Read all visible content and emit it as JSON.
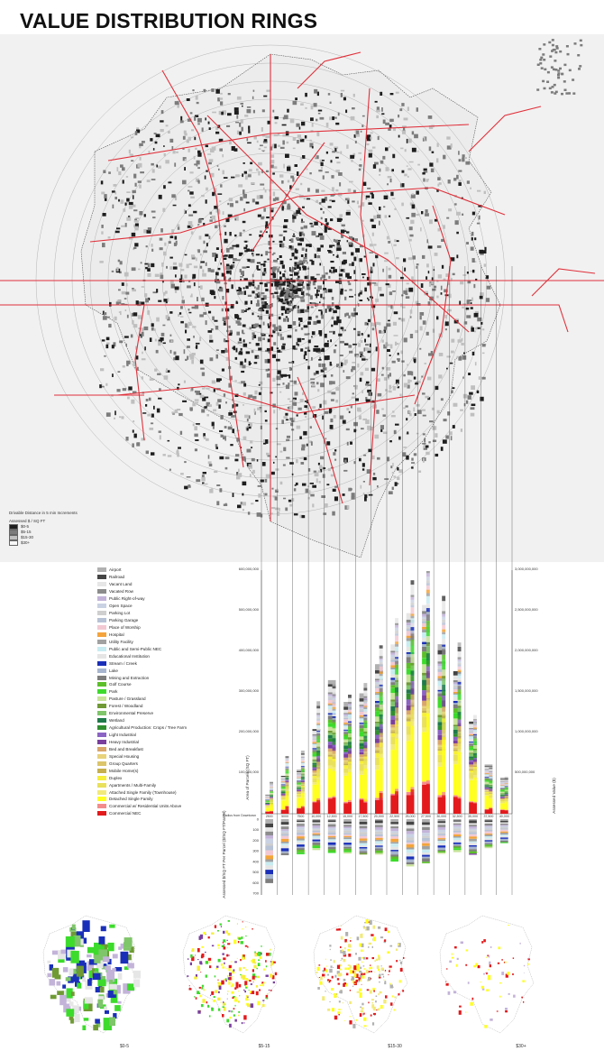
{
  "title": "VALUE DISTRIBUTION RINGS",
  "colors": {
    "ring_line": "#e0303a",
    "dark_parcel": "#1e1e1e",
    "mid_parcel": "#7c7c7c",
    "light_parcel": "#bfbfbf",
    "map_bg": "#f1f1f1"
  },
  "map_legend": {
    "title": "Drivable Distance in 5 min Increments",
    "subtitle": "Assessed $ / SQ FT",
    "items": [
      {
        "label": "$0-5",
        "color": "#1e1e1e"
      },
      {
        "label": "$5-15",
        "color": "#7c7c7c"
      },
      {
        "label": "$15-30",
        "color": "#bfbfbf"
      },
      {
        "label": "$30+",
        "color": "#f7f7f7"
      }
    ]
  },
  "land_use": [
    {
      "label": "Airport",
      "color": "#b0b0b0"
    },
    {
      "label": "Railroad",
      "color": "#444444"
    },
    {
      "label": "Vacant Land",
      "color": "#e6e6e6"
    },
    {
      "label": "Vacated Row",
      "color": "#8c8c8c"
    },
    {
      "label": "Public Right-of-way",
      "color": "#c3b3d9"
    },
    {
      "label": "Open Space",
      "color": "#c9d2e3"
    },
    {
      "label": "Parking Lot",
      "color": "#cfcfcf"
    },
    {
      "label": "Parking Garage",
      "color": "#b7c2d6"
    },
    {
      "label": "Place of Worship",
      "color": "#f2c9d3"
    },
    {
      "label": "Hospital",
      "color": "#f4a43b"
    },
    {
      "label": "Utility Facility",
      "color": "#a1a1a1"
    },
    {
      "label": "Public and Semi-Public NEC",
      "color": "#c8ecf2"
    },
    {
      "label": "Educational Institution",
      "color": "#e5e5e5"
    },
    {
      "label": "Stream / Creek",
      "color": "#1a2fb8"
    },
    {
      "label": "Lake",
      "color": "#a7b5cf"
    },
    {
      "label": "Mining and Extraction",
      "color": "#7e7e7e"
    },
    {
      "label": "Golf Course",
      "color": "#5cbf2a"
    },
    {
      "label": "Park",
      "color": "#3ddb2c"
    },
    {
      "label": "Pasture / Grassland",
      "color": "#c9e39b"
    },
    {
      "label": "Forest / Woodland",
      "color": "#6f9a34"
    },
    {
      "label": "Environmental Preserve",
      "color": "#7fc56a"
    },
    {
      "label": "Wetland",
      "color": "#1f7a4a"
    },
    {
      "label": "Agricultural Production: Crops / Tree Farm",
      "color": "#2f8f2f"
    },
    {
      "label": "Light Industrial",
      "color": "#8b63c4"
    },
    {
      "label": "Heavy Industrial",
      "color": "#7a3f9e"
    },
    {
      "label": "Bed and Breakfast",
      "color": "#d9a66b"
    },
    {
      "label": "Special Housing",
      "color": "#e8d27a"
    },
    {
      "label": "Group Quarters",
      "color": "#dcc56a"
    },
    {
      "label": "Mobile Home(s)",
      "color": "#c6b04d"
    },
    {
      "label": "Duplex",
      "color": "#f6ef3b"
    },
    {
      "label": "Apartments / Multi-Family",
      "color": "#e9e05c"
    },
    {
      "label": "Attached Single Family (Townhouse)",
      "color": "#f2ea7a"
    },
    {
      "label": "Detached Single Family",
      "color": "#ffff22"
    },
    {
      "label": "Commercial w/ Residential Units Above",
      "color": "#f58c8c"
    },
    {
      "label": "Commercial NEC",
      "color": "#e31a1c"
    }
  ],
  "chart_data": {
    "type": "bar",
    "categories": [
      "2500",
      "5000",
      "7500",
      "10,000",
      "12,500",
      "15,000",
      "17,500",
      "20,000",
      "22,500",
      "25,000",
      "27,500",
      "30,000",
      "32,500",
      "35,000",
      "37,500",
      "40,000"
    ],
    "left_axis": {
      "label": "Area of Parcels (SQ FT)",
      "ticks": [
        "100,000,000",
        "200,000,000",
        "300,000,000",
        "400,000,000",
        "500,000,000",
        "600,000,000"
      ],
      "range": [
        0,
        600000000
      ]
    },
    "right_axis": {
      "label": "Assessed Value ($)",
      "ticks": [
        "500,000,000",
        "1,000,000,000",
        "1,500,000,000",
        "2,000,000,000",
        "2,500,000,000",
        "3,000,000,000"
      ],
      "range": [
        0,
        3000000000
      ]
    },
    "x_axis_label": "Radius from Downtown",
    "lower_axis": {
      "label": "Assessed $/SQ FT Per Parcel ($/SQ FT/Parcel)",
      "ticks": [
        "0",
        "100",
        "200",
        "300",
        "400",
        "500",
        "600",
        "700"
      ],
      "range": [
        0,
        700
      ]
    },
    "area_totals": [
      50000000,
      90000000,
      105000000,
      210000000,
      330000000,
      280000000,
      300000000,
      390000000,
      420000000,
      500000000,
      520000000,
      450000000,
      360000000,
      230000000,
      120000000,
      90000000
    ],
    "value_totals": [
      400000000,
      700000000,
      800000000,
      1500000000,
      1700000000,
      1500000000,
      1600000000,
      2100000000,
      2400000000,
      2900000000,
      3000000000,
      2700000000,
      2100000000,
      1200000000,
      600000000,
      450000000
    ],
    "lower_totals": [
      620,
      350,
      340,
      300,
      330,
      330,
      340,
      340,
      410,
      460,
      420,
      330,
      320,
      340,
      280,
      230
    ]
  },
  "mini_maps": [
    {
      "label": "$0-5"
    },
    {
      "label": "$5-15"
    },
    {
      "label": "$15-30"
    },
    {
      "label": "$30+"
    }
  ]
}
